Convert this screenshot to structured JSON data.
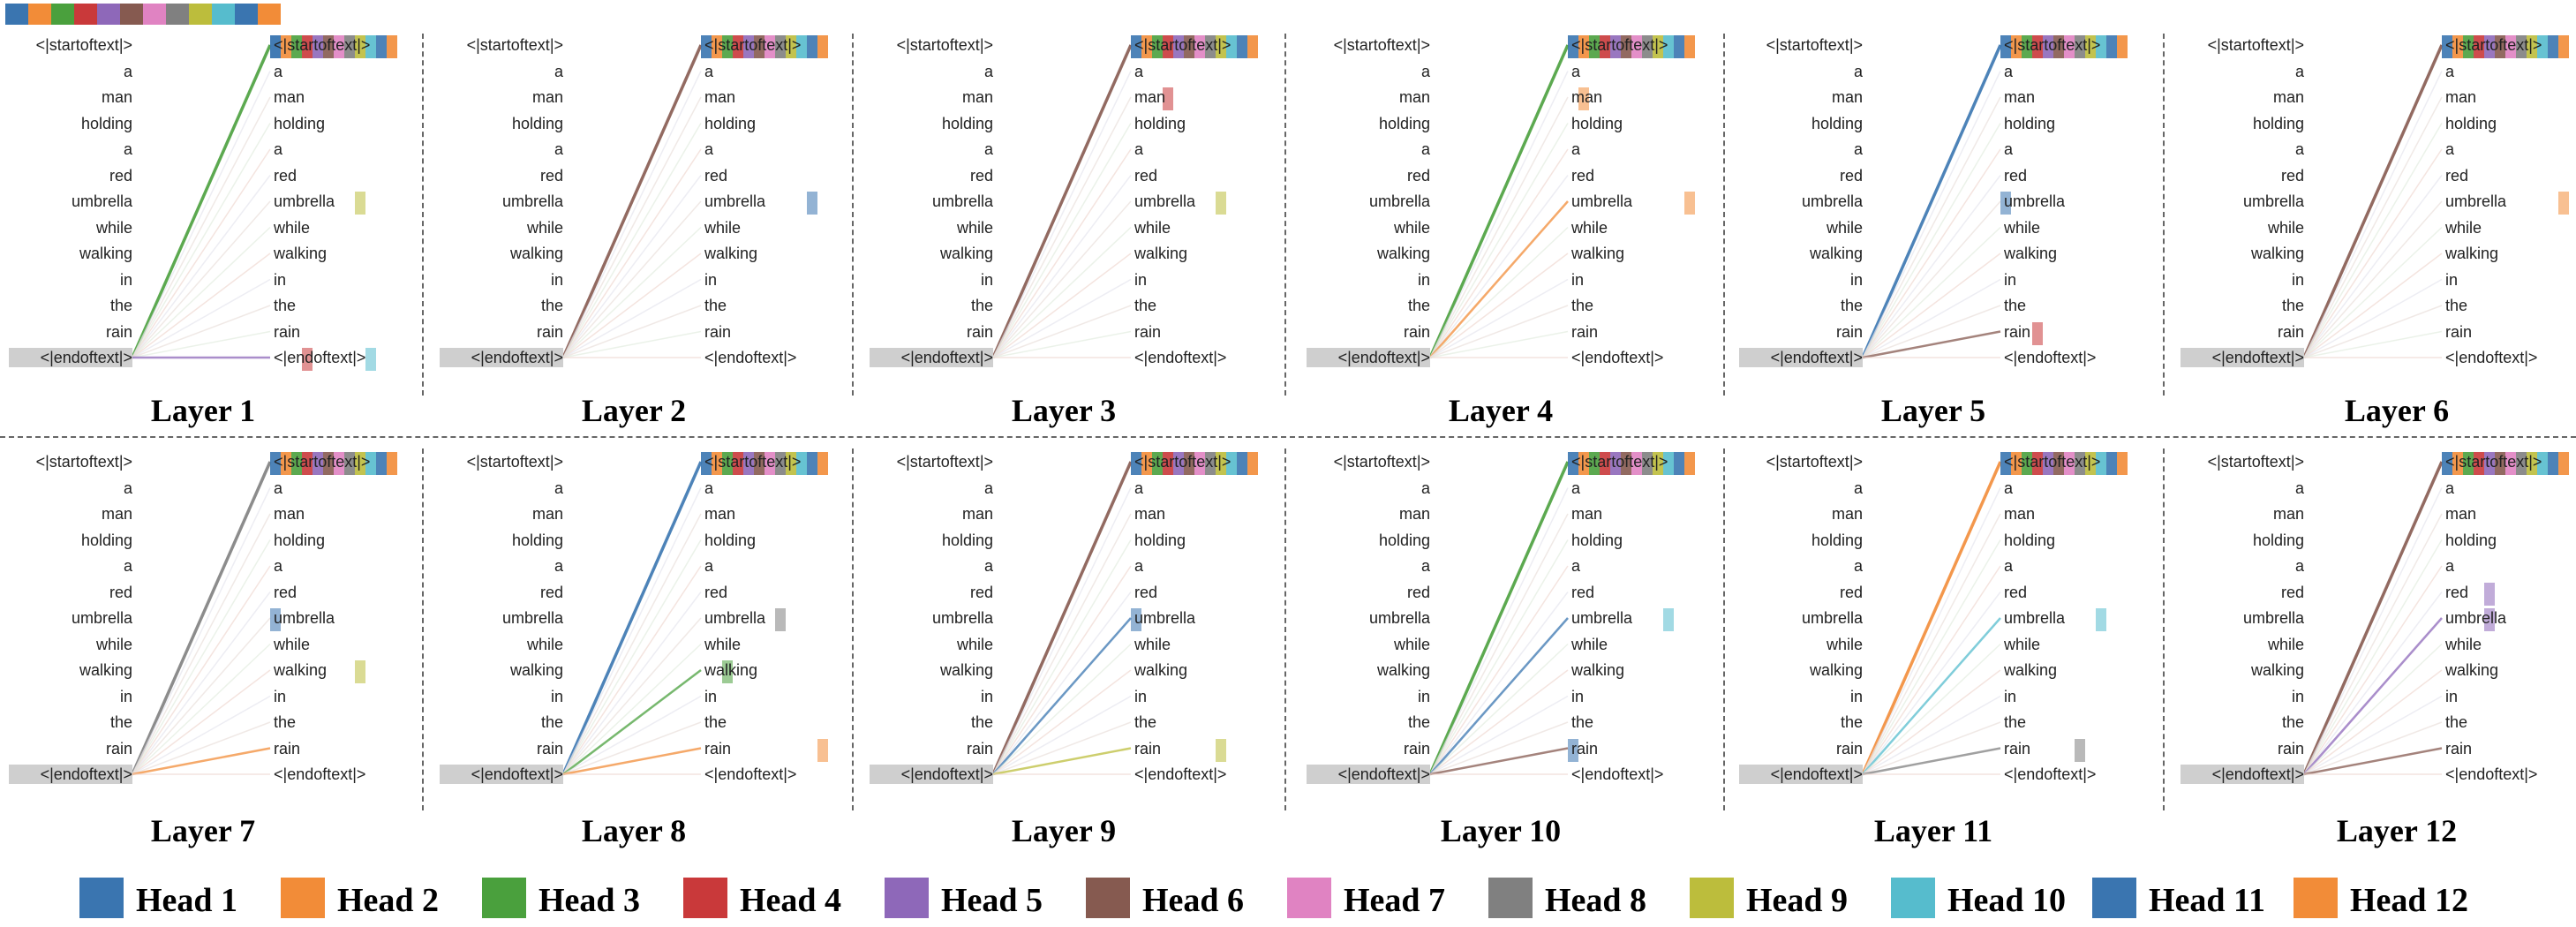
{
  "tokens": [
    "<|startoftext|>",
    "a",
    "man",
    "holding",
    "a",
    "red",
    "umbrella",
    "while",
    "walking",
    "in",
    "the",
    "rain",
    "<|endoftext|>"
  ],
  "head_colors": [
    "#3a75b0",
    "#f28c38",
    "#4aa03d",
    "#c9393a",
    "#8e68b9",
    "#865a50",
    "#e083c2",
    "#808080",
    "#bcbd3c",
    "#56bccd",
    "#3a75b0",
    "#f28c38"
  ],
  "panels": [
    {
      "title": "Layer 1",
      "dominant_head": 3,
      "weak_targets": [
        {
          "token": 12,
          "head": 5
        }
      ],
      "hot": [
        [
          0,
          1
        ],
        [
          6,
          9
        ],
        [
          12,
          4
        ],
        [
          12,
          10
        ]
      ]
    },
    {
      "title": "Layer 2",
      "dominant_head": 6,
      "weak_targets": [],
      "hot": [
        [
          6,
          11
        ]
      ]
    },
    {
      "title": "Layer 3",
      "dominant_head": 6,
      "weak_targets": [],
      "hot": [
        [
          2,
          4
        ],
        [
          6,
          9
        ]
      ]
    },
    {
      "title": "Layer 4",
      "dominant_head": 3,
      "weak_targets": [
        {
          "token": 6,
          "head": 2
        }
      ],
      "hot": [
        [
          6,
          12
        ],
        [
          2,
          2
        ]
      ]
    },
    {
      "title": "Layer 5",
      "dominant_head": 1,
      "weak_targets": [
        {
          "token": 11,
          "head": 6
        }
      ],
      "hot": [
        [
          11,
          4
        ],
        [
          6,
          1
        ]
      ]
    },
    {
      "title": "Layer 6",
      "dominant_head": 6,
      "weak_targets": [],
      "hot": [
        [
          6,
          12
        ]
      ]
    },
    {
      "title": "Layer 7",
      "dominant_head": 8,
      "weak_targets": [
        {
          "token": 11,
          "head": 2
        }
      ],
      "hot": [
        [
          6,
          1
        ],
        [
          8,
          9
        ]
      ]
    },
    {
      "title": "Layer 8",
      "dominant_head": 11,
      "weak_targets": [
        {
          "token": 11,
          "head": 2
        },
        {
          "token": 8,
          "head": 3
        }
      ],
      "hot": [
        [
          11,
          12
        ],
        [
          6,
          8
        ],
        [
          8,
          3
        ]
      ]
    },
    {
      "title": "Layer 9",
      "dominant_head": 6,
      "weak_targets": [
        {
          "token": 11,
          "head": 9
        },
        {
          "token": 6,
          "head": 11
        }
      ],
      "hot": [
        [
          6,
          1
        ],
        [
          11,
          9
        ]
      ]
    },
    {
      "title": "Layer 10",
      "dominant_head": 3,
      "weak_targets": [
        {
          "token": 11,
          "head": 6
        },
        {
          "token": 6,
          "head": 11
        }
      ],
      "hot": [
        [
          6,
          10
        ],
        [
          11,
          1
        ]
      ]
    },
    {
      "title": "Layer 11",
      "dominant_head": 2,
      "weak_targets": [
        {
          "token": 6,
          "head": 10
        },
        {
          "token": 11,
          "head": 8
        }
      ],
      "hot": [
        [
          6,
          10
        ],
        [
          11,
          8
        ]
      ]
    },
    {
      "title": "Layer 12",
      "dominant_head": 6,
      "weak_targets": [
        {
          "token": 6,
          "head": 5
        },
        {
          "token": 11,
          "head": 6
        }
      ],
      "hot": [
        [
          6,
          5
        ],
        [
          5,
          5
        ]
      ]
    }
  ],
  "legend": [
    {
      "label": "Head 1",
      "color": "#3a75b0"
    },
    {
      "label": "Head 2",
      "color": "#f28c38"
    },
    {
      "label": "Head 3",
      "color": "#4aa03d"
    },
    {
      "label": "Head 4",
      "color": "#c9393a"
    },
    {
      "label": "Head 5",
      "color": "#8e68b9"
    },
    {
      "label": "Head 6",
      "color": "#865a50"
    },
    {
      "label": "Head 7",
      "color": "#e083c2"
    },
    {
      "label": "Head 8",
      "color": "#808080"
    },
    {
      "label": "Head 9",
      "color": "#bcbd3c"
    },
    {
      "label": "Head 10",
      "color": "#56bccd"
    },
    {
      "label": "Head 11",
      "color": "#3a75b0"
    },
    {
      "label": "Head 12",
      "color": "#f28c38"
    }
  ]
}
